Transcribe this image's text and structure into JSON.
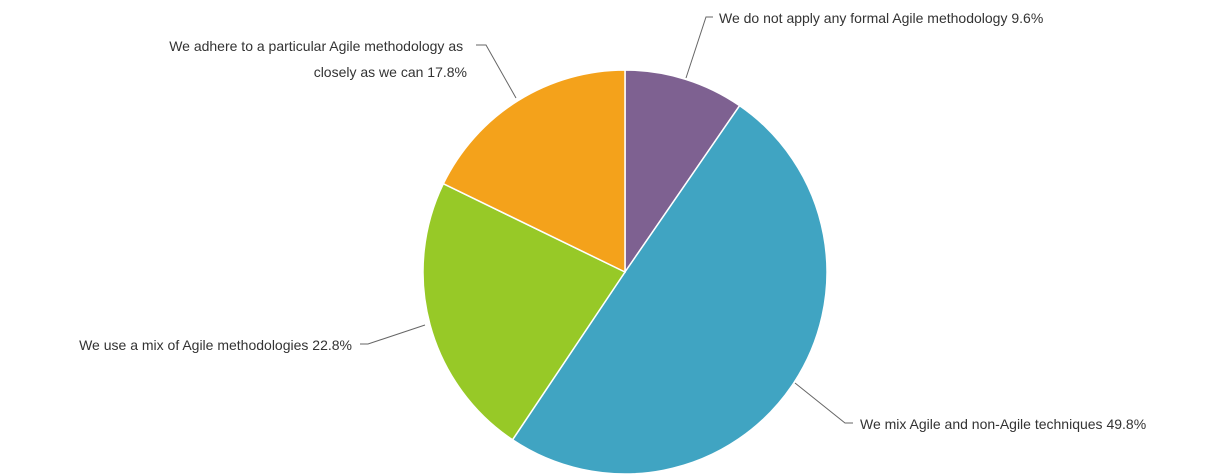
{
  "chart_data": {
    "type": "pie",
    "title": "",
    "slices": [
      {
        "label": "We do not apply any formal Agile methodology",
        "value": 9.6,
        "display": "We do not apply any formal Agile methodology 9.6%",
        "color": "#7e6191"
      },
      {
        "label": "We mix Agile and non-Agile techniques",
        "value": 49.8,
        "display": "We mix Agile and non-Agile techniques 49.8%",
        "color": "#40a4c2"
      },
      {
        "label": "We use a mix of Agile methodologies",
        "value": 22.8,
        "display": "We use a mix of Agile methodologies 22.8%",
        "color": "#97c927"
      },
      {
        "label": "We adhere to a particular Agile methodology as closely as we can",
        "value": 17.8,
        "display_lines": [
          "We adhere to a particular Agile methodology as",
          "closely as we can 17.8%"
        ],
        "color": "#f4a21b"
      }
    ],
    "start_angle": "12 o'clock",
    "direction": "clockwise",
    "legend": "none",
    "labels": "outside with leader lines"
  }
}
